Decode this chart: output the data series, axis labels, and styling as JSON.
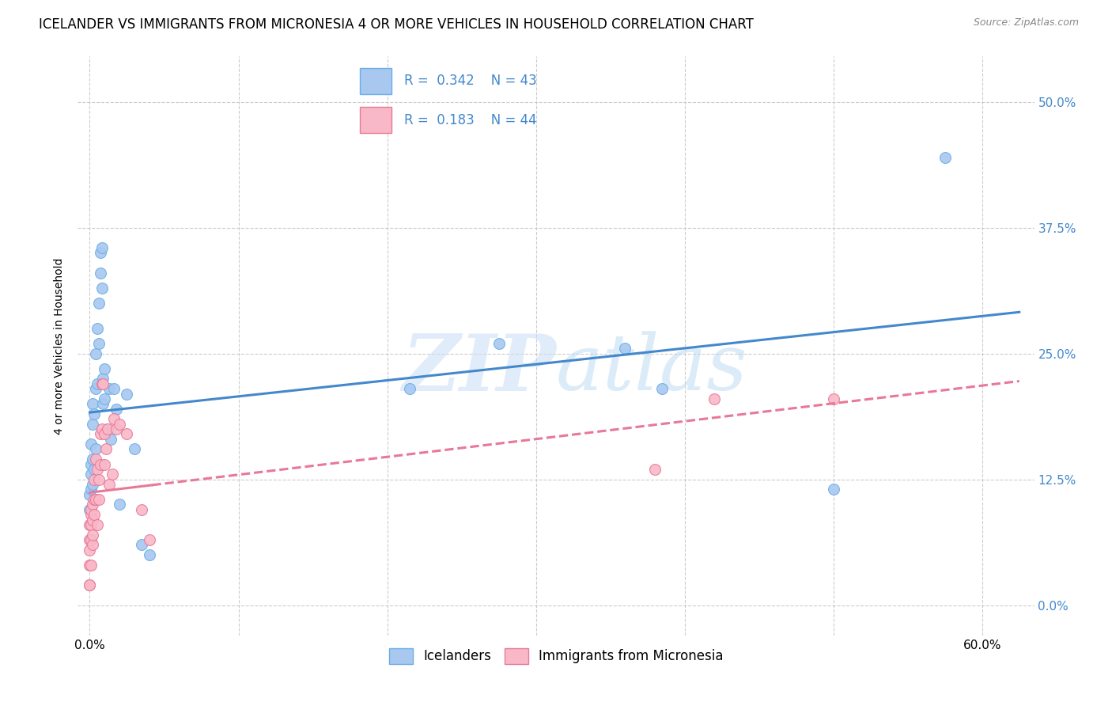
{
  "title": "ICELANDER VS IMMIGRANTS FROM MICRONESIA 4 OR MORE VEHICLES IN HOUSEHOLD CORRELATION CHART",
  "source": "Source: ZipAtlas.com",
  "ylabel": "4 or more Vehicles in Household",
  "xlabel_ticks": [
    "0.0%",
    "",
    "",
    "",
    "",
    "",
    "60.0%"
  ],
  "xlabel_vals": [
    0.0,
    0.1,
    0.2,
    0.3,
    0.4,
    0.5,
    0.6
  ],
  "ylabel_ticks": [
    "0.0%",
    "12.5%",
    "25.0%",
    "37.5%",
    "50.0%"
  ],
  "ylabel_vals": [
    0.0,
    0.125,
    0.25,
    0.375,
    0.5
  ],
  "xlim": [
    -0.008,
    0.635
  ],
  "ylim": [
    -0.03,
    0.545
  ],
  "icelander_color": "#a8c8f0",
  "micronesia_color": "#f9b8c8",
  "icelander_edge_color": "#6aaee8",
  "micronesia_edge_color": "#e87898",
  "icelander_line_color": "#4488cc",
  "micronesia_line_color": "#e87898",
  "R_icelander": 0.342,
  "N_icelander": 43,
  "R_micronesia": 0.183,
  "N_micronesia": 44,
  "legend_label_1": "Icelanders",
  "legend_label_2": "Immigrants from Micronesia",
  "icelander_x": [
    0.0,
    0.0,
    0.001,
    0.001,
    0.001,
    0.001,
    0.002,
    0.002,
    0.002,
    0.002,
    0.003,
    0.003,
    0.004,
    0.004,
    0.004,
    0.005,
    0.005,
    0.006,
    0.006,
    0.007,
    0.007,
    0.008,
    0.008,
    0.009,
    0.009,
    0.01,
    0.01,
    0.012,
    0.013,
    0.014,
    0.016,
    0.018,
    0.02,
    0.025,
    0.03,
    0.035,
    0.04,
    0.215,
    0.275,
    0.36,
    0.385,
    0.5,
    0.575
  ],
  "icelander_y": [
    0.095,
    0.11,
    0.115,
    0.13,
    0.14,
    0.16,
    0.12,
    0.145,
    0.18,
    0.2,
    0.135,
    0.19,
    0.155,
    0.215,
    0.25,
    0.22,
    0.275,
    0.26,
    0.3,
    0.33,
    0.35,
    0.315,
    0.355,
    0.2,
    0.225,
    0.205,
    0.235,
    0.175,
    0.215,
    0.165,
    0.215,
    0.195,
    0.1,
    0.21,
    0.155,
    0.06,
    0.05,
    0.215,
    0.26,
    0.255,
    0.215,
    0.115,
    0.445
  ],
  "micronesia_x": [
    0.0,
    0.0,
    0.0,
    0.0,
    0.0,
    0.0,
    0.001,
    0.001,
    0.001,
    0.001,
    0.001,
    0.002,
    0.002,
    0.002,
    0.002,
    0.003,
    0.003,
    0.003,
    0.004,
    0.004,
    0.005,
    0.005,
    0.006,
    0.006,
    0.007,
    0.007,
    0.008,
    0.008,
    0.009,
    0.01,
    0.01,
    0.011,
    0.012,
    0.013,
    0.015,
    0.016,
    0.018,
    0.02,
    0.025,
    0.035,
    0.04,
    0.38,
    0.42,
    0.5
  ],
  "micronesia_y": [
    0.02,
    0.04,
    0.055,
    0.065,
    0.08,
    0.02,
    0.04,
    0.065,
    0.08,
    0.09,
    0.095,
    0.06,
    0.07,
    0.085,
    0.1,
    0.09,
    0.105,
    0.125,
    0.105,
    0.145,
    0.08,
    0.135,
    0.105,
    0.125,
    0.17,
    0.14,
    0.22,
    0.175,
    0.22,
    0.14,
    0.17,
    0.155,
    0.175,
    0.12,
    0.13,
    0.185,
    0.175,
    0.18,
    0.17,
    0.095,
    0.065,
    0.135,
    0.205,
    0.205
  ],
  "background_color": "#ffffff",
  "grid_color": "#cccccc",
  "title_fontsize": 12,
  "axis_label_fontsize": 10,
  "tick_fontsize": 11
}
